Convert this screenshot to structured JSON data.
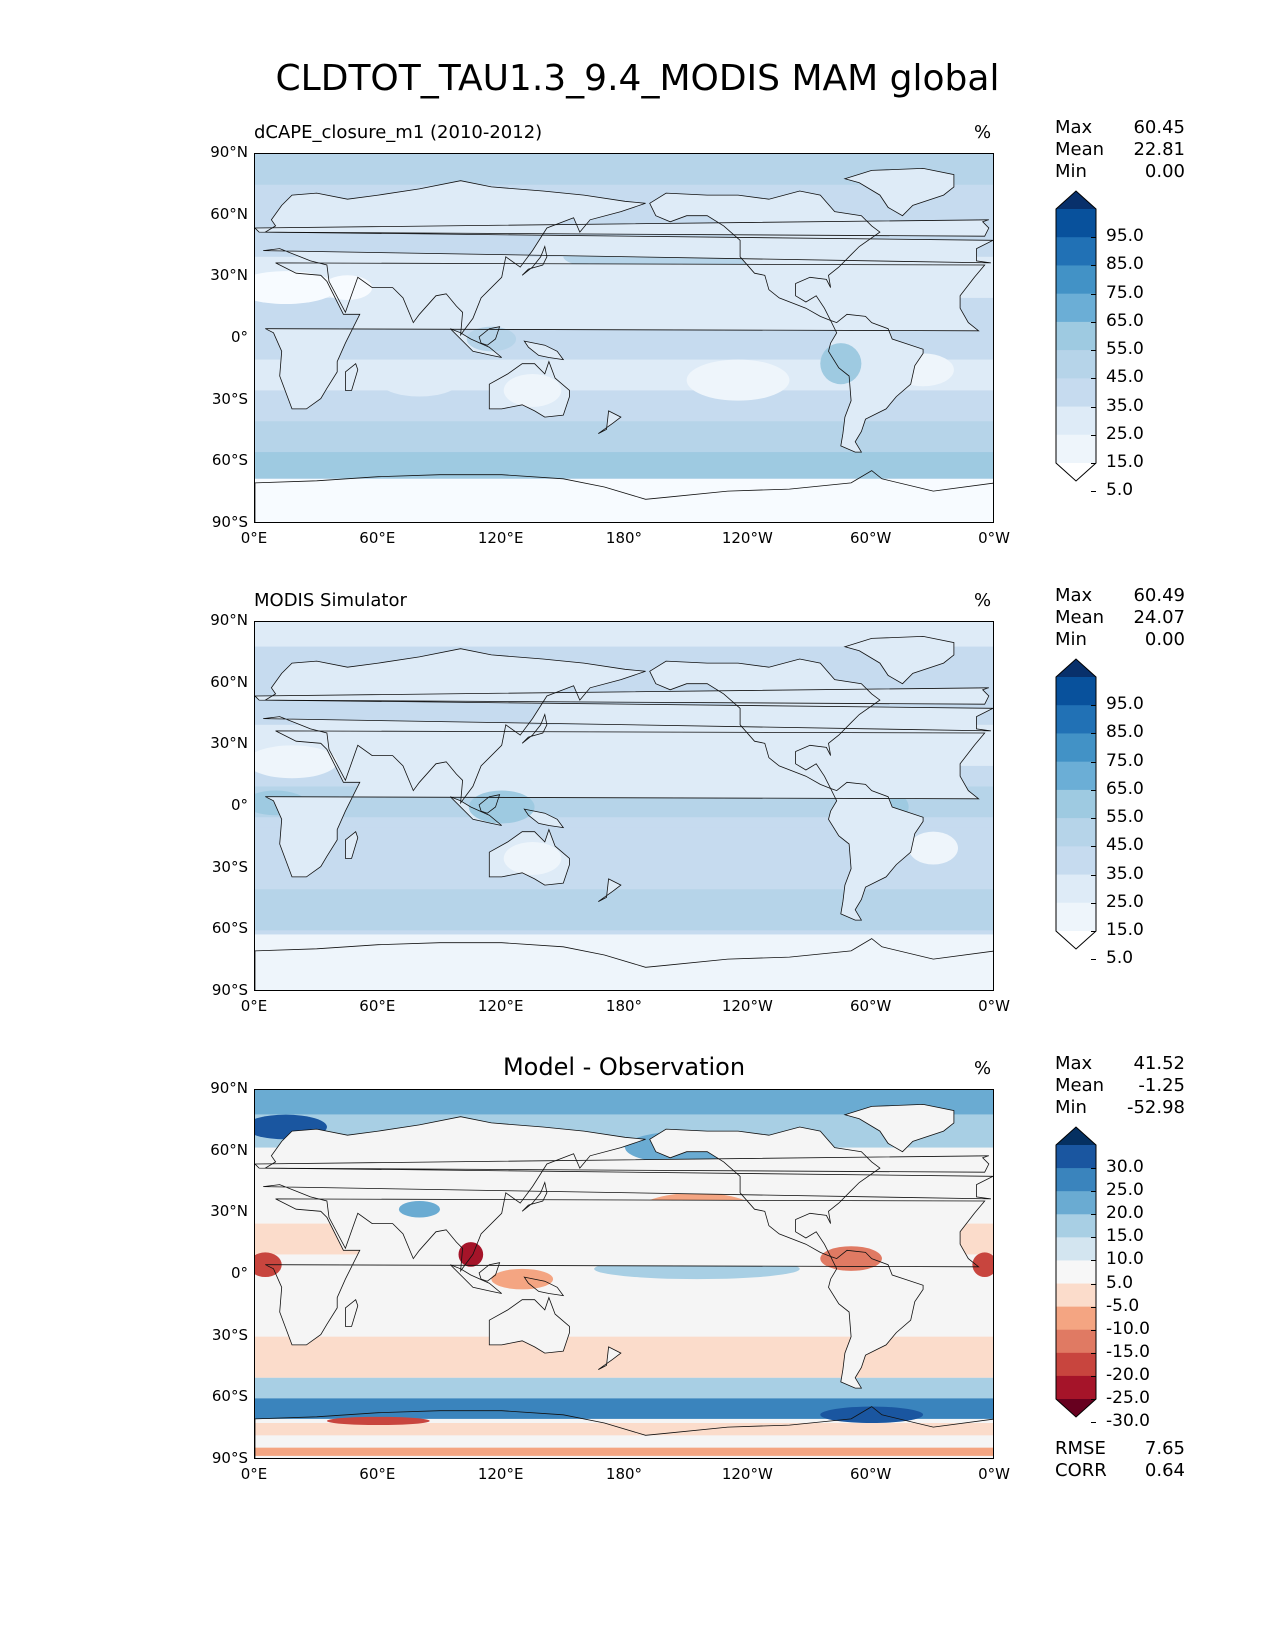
{
  "title": "CLDTOT_TAU1.3_9.4_MODIS MAM global",
  "panels": [
    {
      "title": "dCAPE_closure_m1 (2010-2012)",
      "units": "%",
      "stats": {
        "max_label": "Max",
        "max": "60.45",
        "mean_label": "Mean",
        "mean": "22.81",
        "min_label": "Min",
        "min": "0.00"
      },
      "colorbar": {
        "labels": [
          "95.0",
          "85.0",
          "75.0",
          "65.0",
          "55.0",
          "45.0",
          "35.0",
          "25.0",
          "15.0",
          "5.0"
        ],
        "colors": [
          "#08306b",
          "#08519c",
          "#2171b5",
          "#4292c6",
          "#6baed6",
          "#9ecae1",
          "#b6d4e9",
          "#c6dbef",
          "#deebf7",
          "#eef5fb",
          "#ffffff"
        ]
      }
    },
    {
      "title": "MODIS Simulator",
      "units": "%",
      "stats": {
        "max_label": "Max",
        "max": "60.49",
        "mean_label": "Mean",
        "mean": "24.07",
        "min_label": "Min",
        "min": "0.00"
      },
      "colorbar": {
        "labels": [
          "95.0",
          "85.0",
          "75.0",
          "65.0",
          "55.0",
          "45.0",
          "35.0",
          "25.0",
          "15.0",
          "5.0"
        ],
        "colors": [
          "#08306b",
          "#08519c",
          "#2171b5",
          "#4292c6",
          "#6baed6",
          "#9ecae1",
          "#b6d4e9",
          "#c6dbef",
          "#deebf7",
          "#eef5fb",
          "#ffffff"
        ]
      }
    },
    {
      "title": "Model - Observation",
      "units": "%",
      "stats": {
        "max_label": "Max",
        "max": "41.52",
        "mean_label": "Mean",
        "mean": "-1.25",
        "min_label": "Min",
        "min": "-52.98"
      },
      "metrics": {
        "rmse_label": "RMSE",
        "rmse": "7.65",
        "corr_label": "CORR",
        "corr": "0.64"
      },
      "colorbar": {
        "labels": [
          "30.0",
          "25.0",
          "20.0",
          "15.0",
          "10.0",
          "5.0",
          "-5.0",
          "-10.0",
          "-15.0",
          "-20.0",
          "-25.0",
          "-30.0"
        ],
        "colors": [
          "#053061",
          "#1a56a0",
          "#3a84bd",
          "#6aabd2",
          "#a8cfe4",
          "#d3e5f0",
          "#f7f7f7",
          "#fbdccb",
          "#f4a582",
          "#e07a63",
          "#c8453e",
          "#a51429",
          "#67001f"
        ]
      }
    }
  ],
  "axes": {
    "lat_ticks": [
      "90°N",
      "60°N",
      "30°N",
      "0°",
      "30°S",
      "60°S",
      "90°S"
    ],
    "lon_ticks": [
      "0°E",
      "60°E",
      "120°E",
      "180°",
      "120°W",
      "60°W",
      "0°W"
    ]
  },
  "chart_data": [
    {
      "type": "heatmap",
      "title": "dCAPE_closure_m1 (2010-2012)",
      "units": "%",
      "x_ticks": [
        "0°E",
        "60°E",
        "120°E",
        "180°",
        "120°W",
        "60°W",
        "0°W"
      ],
      "y_ticks": [
        "90°N",
        "60°N",
        "30°N",
        "0°",
        "30°S",
        "60°S",
        "90°S"
      ],
      "xlim": [
        0,
        360
      ],
      "ylim": [
        -90,
        90
      ],
      "levels": [
        5,
        15,
        25,
        35,
        45,
        55,
        65,
        75,
        85,
        95
      ],
      "max": 60.45,
      "mean": 22.81,
      "min": 0.0,
      "colormap": "Blues"
    },
    {
      "type": "heatmap",
      "title": "MODIS Simulator",
      "units": "%",
      "x_ticks": [
        "0°E",
        "60°E",
        "120°E",
        "180°",
        "120°W",
        "60°W",
        "0°W"
      ],
      "y_ticks": [
        "90°N",
        "60°N",
        "30°N",
        "0°",
        "30°S",
        "60°S",
        "90°S"
      ],
      "xlim": [
        0,
        360
      ],
      "ylim": [
        -90,
        90
      ],
      "levels": [
        5,
        15,
        25,
        35,
        45,
        55,
        65,
        75,
        85,
        95
      ],
      "max": 60.49,
      "mean": 24.07,
      "min": 0.0,
      "colormap": "Blues"
    },
    {
      "type": "heatmap",
      "title": "Model - Observation",
      "units": "%",
      "x_ticks": [
        "0°E",
        "60°E",
        "120°E",
        "180°",
        "120°W",
        "60°W",
        "0°W"
      ],
      "y_ticks": [
        "90°N",
        "60°N",
        "30°N",
        "0°",
        "30°S",
        "60°S",
        "90°S"
      ],
      "xlim": [
        0,
        360
      ],
      "ylim": [
        -90,
        90
      ],
      "levels": [
        -30,
        -25,
        -20,
        -15,
        -10,
        -5,
        5,
        10,
        15,
        20,
        25,
        30
      ],
      "max": 41.52,
      "mean": -1.25,
      "min": -52.98,
      "rmse": 7.65,
      "corr": 0.64,
      "colormap": "RdBu_r"
    }
  ]
}
